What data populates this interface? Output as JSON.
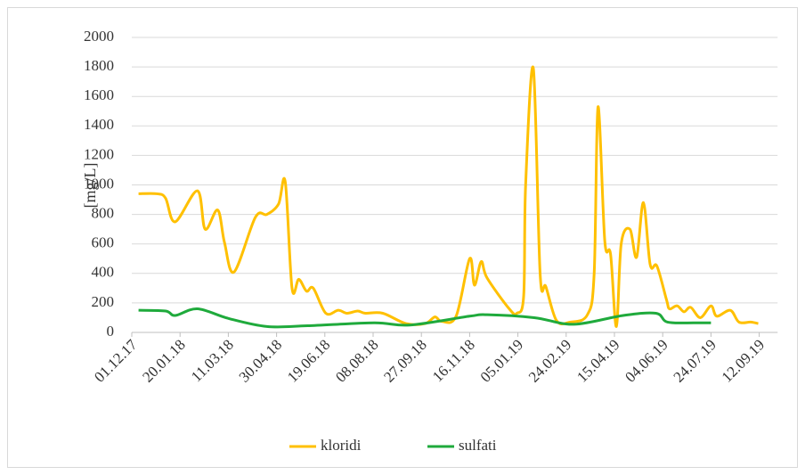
{
  "chart_data": {
    "type": "line",
    "y_label": "[mg/L]",
    "xlim": [
      "01.12.17",
      "01.10.19"
    ],
    "xticks": [
      "01.12.17",
      "20.01.18",
      "11.03.18",
      "30.04.18",
      "19.06.18",
      "08.08.18",
      "27.09.18",
      "16.11.18",
      "05.01.19",
      "24.02.19",
      "15.04.19",
      "04.06.19",
      "24.07.19",
      "12.09.19"
    ],
    "ylim": [
      0,
      2000
    ],
    "yticks": [
      0,
      200,
      400,
      600,
      800,
      1000,
      1200,
      1400,
      1600,
      1800,
      2000
    ],
    "grid": true,
    "legend": "bottom",
    "series": [
      {
        "name": "kloridi",
        "color": "#ffc000",
        "x": [
          "08.12.17",
          "27.12.17",
          "05.01.18",
          "15.01.18",
          "07.02.18",
          "15.02.18",
          "28.02.18",
          "07.03.18",
          "17.03.18",
          "08.04.18",
          "20.04.18",
          "02.05.18",
          "09.05.18",
          "16.05.18",
          "23.05.18",
          "31.05.18",
          "07.06.18",
          "20.06.18",
          "03.07.18",
          "12.07.18",
          "23.07.18",
          "31.07.18",
          "18.08.18",
          "11.09.18",
          "01.10.18",
          "11.10.18",
          "18.10.18",
          "02.11.18",
          "16.11.18",
          "21.11.18",
          "28.11.18",
          "04.12.18",
          "27.12.18",
          "04.01.19",
          "11.01.19",
          "13.01.19",
          "21.01.19",
          "28.01.19",
          "03.02.19",
          "14.02.19",
          "28.02.19",
          "18.03.19",
          "25.03.19",
          "29.03.19",
          "05.04.19",
          "11.04.19",
          "17.04.19",
          "22.04.19",
          "01.05.19",
          "08.05.19",
          "15.05.19",
          "22.05.19",
          "29.05.19",
          "08.06.19",
          "11.06.19",
          "19.06.19",
          "26.06.19",
          "03.07.19",
          "13.07.19",
          "24.07.19",
          "30.07.19",
          "13.08.19",
          "22.08.19",
          "03.09.19",
          "11.09.19"
        ],
        "values": [
          940,
          940,
          910,
          750,
          960,
          700,
          830,
          610,
          410,
          780,
          800,
          870,
          1020,
          300,
          360,
          280,
          300,
          130,
          150,
          130,
          145,
          130,
          130,
          60,
          60,
          105,
          75,
          110,
          500,
          320,
          480,
          370,
          160,
          130,
          250,
          1000,
          1790,
          400,
          310,
          80,
          70,
          120,
          400,
          1530,
          620,
          530,
          40,
          600,
          700,
          510,
          880,
          460,
          450,
          220,
          160,
          180,
          140,
          170,
          100,
          180,
          110,
          150,
          70,
          70,
          60
        ]
      },
      {
        "name": "sulfati",
        "color": "#1faa3c",
        "x": [
          "08.12.17",
          "05.01.18",
          "15.01.18",
          "07.02.18",
          "11.03.18",
          "20.04.18",
          "01.06.18",
          "09.08.18",
          "15.09.18",
          "16.11.18",
          "04.12.18",
          "22.01.19",
          "04.03.19",
          "24.04.19",
          "28.05.19",
          "09.06.19",
          "07.07.19",
          "24.07.19"
        ],
        "values": [
          150,
          145,
          115,
          160,
          95,
          40,
          45,
          65,
          50,
          110,
          120,
          100,
          55,
          115,
          130,
          70,
          65,
          65
        ]
      }
    ]
  }
}
